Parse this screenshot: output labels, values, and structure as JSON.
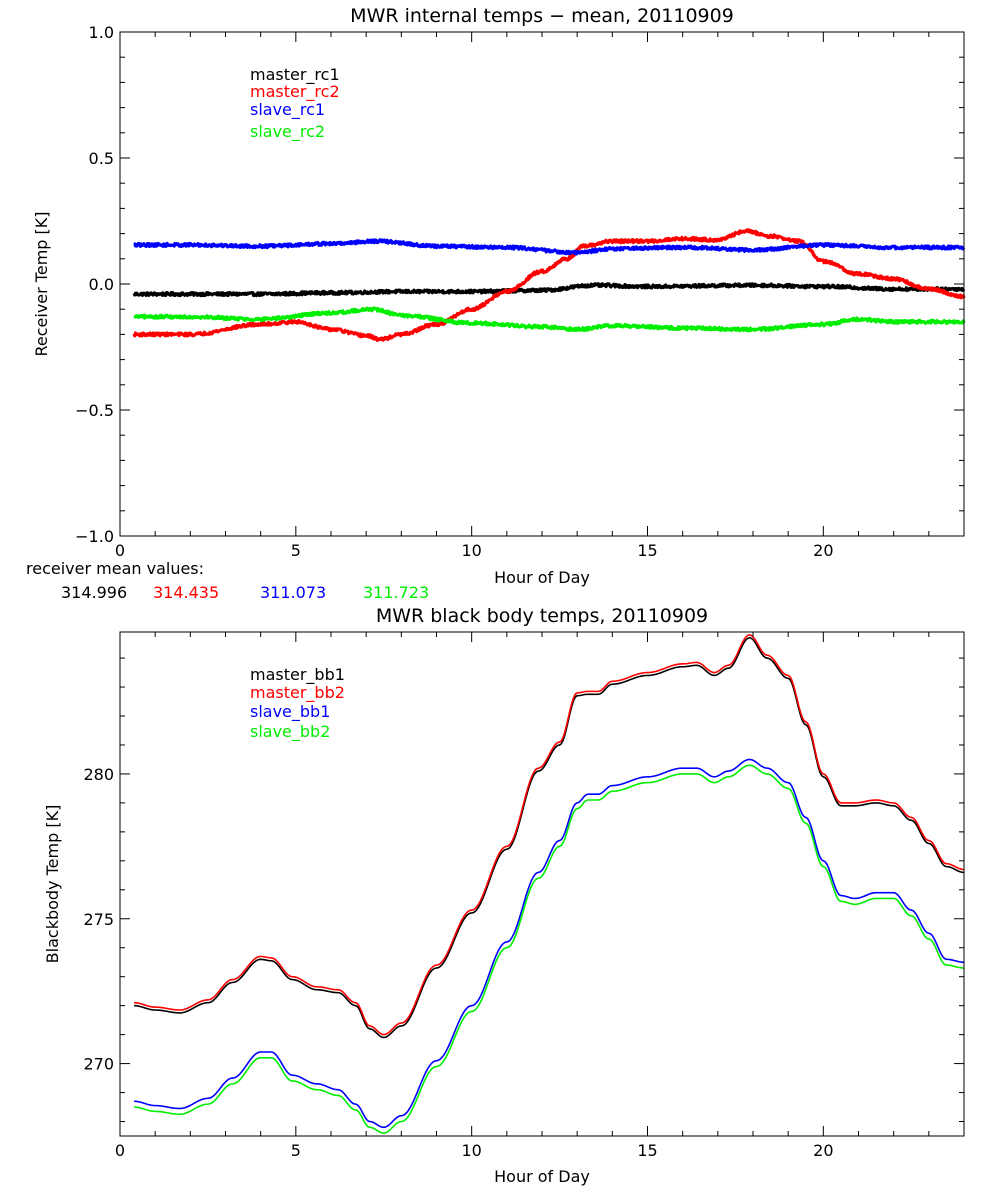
{
  "chart_data": [
    {
      "type": "line",
      "title": "MWR internal temps − mean, 20110909",
      "xlabel": "Hour of Day",
      "ylabel": "Receiver Temp [K]",
      "xlim": [
        0,
        24
      ],
      "ylim": [
        -1.0,
        1.0
      ],
      "xticks": [
        0,
        5,
        10,
        15,
        20
      ],
      "yticks": [
        -1.0,
        -0.5,
        0.0,
        0.5,
        1.0
      ],
      "ytick_labels": [
        "−1.0",
        "−0.5",
        "0.0",
        "0.5",
        "1.0"
      ],
      "legend_position": "top-left",
      "noise": 0.006,
      "series": [
        {
          "name": "master_rc1",
          "color": "#000000",
          "x": [
            0.4,
            2,
            4,
            6,
            8,
            10,
            12,
            13.5,
            15,
            18,
            20,
            22,
            24
          ],
          "y": [
            -0.04,
            -0.04,
            -0.04,
            -0.035,
            -0.03,
            -0.03,
            -0.025,
            -0.005,
            -0.01,
            -0.005,
            -0.01,
            -0.02,
            -0.02
          ]
        },
        {
          "name": "master_rc2",
          "color": "#ff0000",
          "x": [
            0.4,
            2,
            4,
            5,
            6,
            7,
            7.4,
            8,
            9,
            10,
            11,
            12,
            12.7,
            13.2,
            14,
            15,
            16,
            17,
            17.8,
            18.5,
            19.3,
            20,
            21,
            22,
            23,
            24
          ],
          "y": [
            -0.2,
            -0.2,
            -0.16,
            -0.15,
            -0.18,
            -0.205,
            -0.22,
            -0.2,
            -0.16,
            -0.1,
            -0.03,
            0.05,
            0.1,
            0.15,
            0.17,
            0.17,
            0.18,
            0.175,
            0.21,
            0.19,
            0.17,
            0.09,
            0.04,
            0.02,
            -0.02,
            -0.05
          ]
        },
        {
          "name": "slave_rc1",
          "color": "#0000ff",
          "x": [
            0.4,
            2,
            4,
            6,
            7.3,
            9,
            11,
            13,
            14,
            16,
            18,
            20,
            22,
            24
          ],
          "y": [
            0.155,
            0.155,
            0.15,
            0.16,
            0.17,
            0.15,
            0.145,
            0.125,
            0.14,
            0.145,
            0.135,
            0.155,
            0.145,
            0.145
          ]
        },
        {
          "name": "slave_rc2",
          "color": "#00ee00",
          "x": [
            0.4,
            2,
            4,
            6,
            7.2,
            8,
            10,
            12,
            13,
            14,
            16,
            18,
            20,
            21,
            22,
            24
          ],
          "y": [
            -0.13,
            -0.13,
            -0.14,
            -0.115,
            -0.1,
            -0.125,
            -0.155,
            -0.17,
            -0.18,
            -0.165,
            -0.175,
            -0.18,
            -0.16,
            -0.14,
            -0.15,
            -0.15
          ]
        }
      ]
    },
    {
      "type": "line",
      "title": "MWR black body temps, 20110909",
      "xlabel": "Hour of Day",
      "ylabel": "Blackbody Temp [K]",
      "xlim": [
        0,
        24
      ],
      "ylim": [
        267.5,
        284.9
      ],
      "xticks": [
        0,
        5,
        10,
        15,
        20
      ],
      "yticks": [
        270,
        275,
        280
      ],
      "ytick_labels": [
        "270",
        "275",
        "280"
      ],
      "legend_position": "top-left",
      "noise": 0,
      "series": [
        {
          "name": "master_bb1",
          "color": "#000000",
          "x": [
            0.4,
            1.0,
            1.7,
            2.5,
            3.2,
            4.0,
            4.3,
            4.9,
            5.6,
            6.2,
            6.7,
            7.1,
            7.5,
            8.0,
            9.0,
            10.0,
            11.0,
            11.9,
            12.5,
            13.0,
            13.3,
            13.6,
            14.0,
            15.0,
            16.0,
            16.4,
            16.9,
            17.3,
            17.9,
            18.4,
            19.0,
            19.5,
            20.0,
            20.5,
            20.9,
            21.5,
            22.0,
            22.5,
            23.0,
            23.5,
            24.0
          ],
          "y": [
            272.0,
            271.85,
            271.75,
            272.1,
            272.8,
            273.6,
            273.55,
            272.9,
            272.55,
            272.45,
            272.0,
            271.2,
            270.9,
            271.3,
            273.3,
            275.2,
            277.4,
            280.1,
            281.0,
            282.7,
            282.75,
            282.75,
            283.1,
            283.4,
            283.7,
            283.75,
            283.4,
            283.65,
            284.7,
            284.0,
            283.3,
            281.7,
            279.9,
            278.9,
            278.9,
            279.0,
            278.9,
            278.4,
            277.6,
            276.8,
            276.6
          ]
        },
        {
          "name": "master_bb2",
          "color": "#ff0000",
          "x": [
            0.4,
            1.0,
            1.7,
            2.5,
            3.2,
            4.0,
            4.3,
            4.9,
            5.6,
            6.2,
            6.7,
            7.1,
            7.5,
            8.0,
            9.0,
            10.0,
            11.0,
            11.9,
            12.5,
            13.0,
            13.3,
            13.6,
            14.0,
            15.0,
            16.0,
            16.4,
            16.9,
            17.3,
            17.9,
            18.4,
            19.0,
            19.5,
            20.0,
            20.5,
            20.9,
            21.5,
            22.0,
            22.5,
            23.0,
            23.5,
            24.0
          ],
          "y": [
            272.1,
            271.95,
            271.85,
            272.2,
            272.9,
            273.7,
            273.65,
            273.0,
            272.65,
            272.55,
            272.1,
            271.3,
            271.0,
            271.4,
            273.4,
            275.3,
            277.5,
            280.2,
            281.1,
            282.8,
            282.85,
            282.85,
            283.2,
            283.5,
            283.8,
            283.85,
            283.5,
            283.75,
            284.8,
            284.1,
            283.4,
            281.8,
            280.0,
            279.0,
            279.0,
            279.1,
            279.0,
            278.5,
            277.7,
            276.9,
            276.7
          ]
        },
        {
          "name": "slave_bb1",
          "color": "#0000ff",
          "x": [
            0.4,
            1.0,
            1.7,
            2.5,
            3.2,
            4.0,
            4.3,
            4.9,
            5.6,
            6.2,
            6.7,
            7.1,
            7.5,
            8.0,
            9.0,
            10.0,
            11.0,
            11.9,
            12.5,
            13.0,
            13.3,
            13.6,
            14.0,
            15.0,
            16.0,
            16.4,
            16.9,
            17.3,
            17.9,
            18.4,
            19.0,
            19.5,
            20.0,
            20.5,
            20.9,
            21.5,
            22.0,
            22.5,
            23.0,
            23.5,
            24.0
          ],
          "y": [
            268.7,
            268.55,
            268.45,
            268.8,
            269.5,
            270.4,
            270.4,
            269.6,
            269.3,
            269.1,
            268.6,
            268.0,
            267.8,
            268.2,
            270.1,
            272.0,
            274.2,
            276.6,
            277.7,
            279.0,
            279.3,
            279.3,
            279.6,
            279.9,
            280.2,
            280.2,
            279.9,
            280.1,
            280.5,
            280.2,
            279.7,
            278.5,
            277.0,
            275.8,
            275.7,
            275.9,
            275.9,
            275.3,
            274.5,
            273.6,
            273.5
          ]
        },
        {
          "name": "slave_bb2",
          "color": "#00ee00",
          "x": [
            0.4,
            1.0,
            1.7,
            2.5,
            3.2,
            4.0,
            4.3,
            4.9,
            5.6,
            6.2,
            6.7,
            7.1,
            7.5,
            8.0,
            9.0,
            10.0,
            11.0,
            11.9,
            12.5,
            13.0,
            13.3,
            13.6,
            14.0,
            15.0,
            16.0,
            16.4,
            16.9,
            17.3,
            17.9,
            18.4,
            19.0,
            19.5,
            20.0,
            20.5,
            20.9,
            21.5,
            22.0,
            22.5,
            23.0,
            23.5,
            24.0
          ],
          "y": [
            268.5,
            268.35,
            268.25,
            268.6,
            269.3,
            270.2,
            270.2,
            269.4,
            269.1,
            268.9,
            268.4,
            267.8,
            267.6,
            268.0,
            269.9,
            271.8,
            274.0,
            276.4,
            277.5,
            278.8,
            279.1,
            279.1,
            279.4,
            279.7,
            280.0,
            280.0,
            279.7,
            279.9,
            280.3,
            280.0,
            279.5,
            278.3,
            276.8,
            275.6,
            275.5,
            275.7,
            275.7,
            275.1,
            274.3,
            273.4,
            273.3
          ]
        }
      ]
    }
  ],
  "receiver_mean": {
    "label": "receiver mean values:",
    "values": [
      {
        "text": "314.996",
        "color": "#000000"
      },
      {
        "text": "314.435",
        "color": "#ff0000"
      },
      {
        "text": "311.073",
        "color": "#0000ff"
      },
      {
        "text": "311.723",
        "color": "#00ee00"
      }
    ]
  }
}
